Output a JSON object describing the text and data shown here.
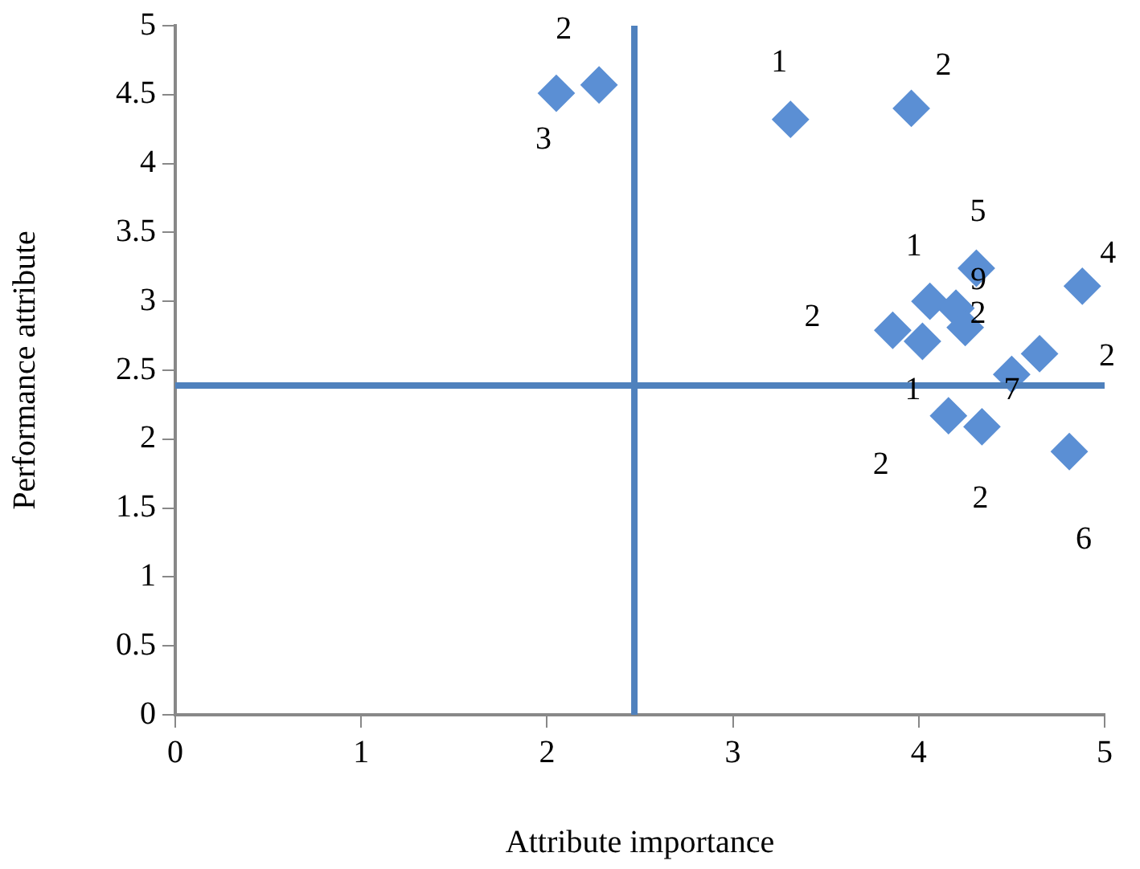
{
  "chart_data": {
    "type": "scatter",
    "xlabel": "Attribute importance",
    "ylabel": "Performance attribute",
    "xlim": [
      0,
      5
    ],
    "xticks": [
      0,
      1,
      2,
      3,
      4,
      5
    ],
    "ylim": [
      0,
      5
    ],
    "yticks": [
      0,
      0.5,
      1,
      1.5,
      2,
      2.5,
      3,
      3.5,
      4,
      4.5,
      5
    ],
    "grid": false,
    "legend": false,
    "marker": "diamond",
    "series": [
      {
        "color": "#5b8fd4",
        "x": [
          2.05,
          2.28,
          3.31,
          3.96,
          4.31,
          4.88,
          4.06,
          4.2,
          3.86,
          4.25,
          4.02,
          4.65,
          4.5,
          4.16,
          4.34,
          4.81
        ],
        "values": [
          4.51,
          4.57,
          4.32,
          4.4,
          3.24,
          3.11,
          3.0,
          2.95,
          2.79,
          2.81,
          2.71,
          2.62,
          2.47,
          2.17,
          2.09,
          1.91
        ]
      }
    ],
    "ref_lines": [
      {
        "axis": "x",
        "value": 2.47,
        "color": "#4f81bd"
      },
      {
        "axis": "y",
        "value": 2.39,
        "color": "#4f81bd"
      }
    ],
    "annotations": [
      {
        "text": "3",
        "x": 2.05,
        "y": 4.51
      },
      {
        "text": "2",
        "x": 2.28,
        "y": 4.57
      },
      {
        "text": "1",
        "x": 3.31,
        "y": 4.32
      },
      {
        "text": "2",
        "x": 3.96,
        "y": 4.4
      },
      {
        "text": "5",
        "x": 4.31,
        "y": 3.24
      },
      {
        "text": "4",
        "x": 4.88,
        "y": 3.11
      },
      {
        "text": "1",
        "x": 4.06,
        "y": 3.0
      },
      {
        "text": "9",
        "x": 4.2,
        "y": 2.95
      },
      {
        "text": "2",
        "x": 3.86,
        "y": 2.79
      },
      {
        "text": "2",
        "x": 4.25,
        "y": 2.81
      },
      {
        "text": "1",
        "x": 4.02,
        "y": 2.71
      },
      {
        "text": "2",
        "x": 4.65,
        "y": 2.62
      },
      {
        "text": "7",
        "x": 4.5,
        "y": 2.47
      },
      {
        "text": "2",
        "x": 4.16,
        "y": 2.17
      },
      {
        "text": "2",
        "x": 4.34,
        "y": 2.09
      },
      {
        "text": "6",
        "x": 4.81,
        "y": 1.91
      }
    ]
  }
}
